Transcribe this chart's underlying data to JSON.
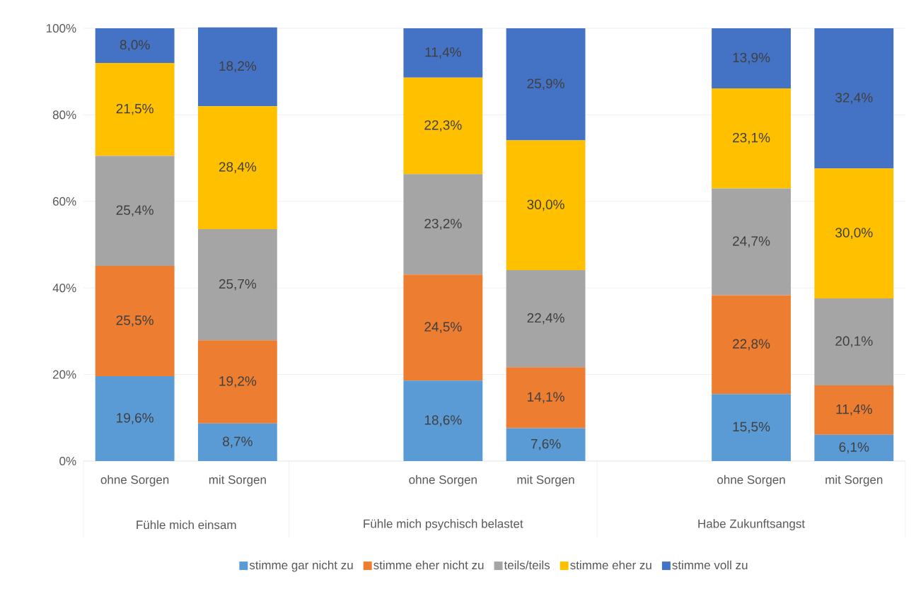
{
  "chart_data": {
    "type": "bar",
    "stacked": true,
    "categories": [
      "ohne Sorgen",
      "mit Sorgen",
      null,
      "ohne Sorgen",
      "mit Sorgen",
      null,
      "ohne Sorgen",
      "mit Sorgen"
    ],
    "ylim": [
      0,
      100
    ],
    "yticks": [
      {
        "value": 0,
        "label": "0%"
      },
      {
        "value": 20,
        "label": "20%"
      },
      {
        "value": 40,
        "label": "40%"
      },
      {
        "value": 60,
        "label": "60%"
      },
      {
        "value": 80,
        "label": "80%"
      },
      {
        "value": 100,
        "label": "100%"
      }
    ],
    "grid": "y",
    "legend": "bottom",
    "annotations": [
      "Fühle mich einsam",
      "Fühle mich psychisch belastet",
      "Habe Zukunftsangst"
    ],
    "series": [
      {
        "name": "stimme gar nicht zu",
        "color": "#5b9bd5",
        "values": [
          19.6,
          8.7,
          null,
          18.6,
          7.6,
          null,
          15.5,
          6.1
        ],
        "value_labels": [
          "19,6%",
          "8,7%",
          null,
          "18,6%",
          "7,6%",
          null,
          "15,5%",
          "6,1%"
        ]
      },
      {
        "name": "stimme eher nicht zu",
        "color": "#ed7d31",
        "values": [
          25.5,
          19.2,
          null,
          24.5,
          14.1,
          null,
          22.8,
          11.4
        ],
        "value_labels": [
          "25,5%",
          "19,2%",
          null,
          "24,5%",
          "14,1%",
          null,
          "22,8%",
          "11,4%"
        ]
      },
      {
        "name": "teils/teils",
        "color": "#a5a5a5",
        "values": [
          25.4,
          25.7,
          null,
          23.2,
          22.4,
          null,
          24.7,
          20.1
        ],
        "value_labels": [
          "25,4%",
          "25,7%",
          null,
          "23,2%",
          "22,4%",
          null,
          "24,7%",
          "20,1%"
        ]
      },
      {
        "name": "stimme eher zu",
        "color": "#ffc000",
        "values": [
          21.5,
          28.4,
          null,
          22.3,
          30.0,
          null,
          23.1,
          30.0
        ],
        "value_labels": [
          "21,5%",
          "28,4%",
          null,
          "22,3%",
          "30,0%",
          null,
          "23,1%",
          "30,0%"
        ]
      },
      {
        "name": "stimme voll zu",
        "color": "#4472c4",
        "values": [
          8.0,
          18.2,
          null,
          11.4,
          25.9,
          null,
          13.9,
          32.4
        ],
        "value_labels": [
          "8,0%",
          "18,2%",
          null,
          "11,4%",
          "25,9%",
          null,
          "13,9%",
          "32,4%"
        ]
      }
    ]
  }
}
